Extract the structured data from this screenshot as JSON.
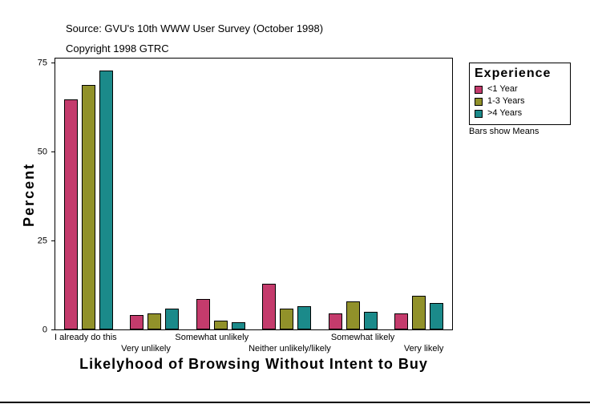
{
  "header": {
    "source": "Source: GVU's 10th WWW User Survey (October 1998)",
    "copyright": "Copyright 1998 GTRC"
  },
  "chart_data": {
    "type": "bar",
    "title": "Likelyhood of Browsing Without Intent to Buy",
    "xlabel": "Likelyhood of Browsing Without Intent to Buy",
    "ylabel": "Percent",
    "categories": [
      "I already do this",
      "Very unlikely",
      "Somewhat unlikely",
      "Neither unlikely/likely",
      "Somewhat likely",
      "Very likely"
    ],
    "series": [
      {
        "name": "<1 Year",
        "color": "#c43b6c",
        "values": [
          65,
          4,
          8.5,
          13,
          4.5,
          4.5
        ]
      },
      {
        "name": "1-3 Years",
        "color": "#91912a",
        "values": [
          69,
          4.5,
          2.5,
          6,
          8,
          9.5
        ]
      },
      {
        "name": ">4 Years",
        "color": "#1b8a8a",
        "values": [
          73,
          6,
          2,
          6.5,
          5,
          7.5
        ]
      }
    ],
    "yticks": [
      0,
      25,
      50,
      75
    ],
    "ylim": [
      0,
      76.5
    ],
    "grid": false,
    "legend_title": "Experience",
    "legend_note": "Bars show Means",
    "legend_position": "right"
  }
}
